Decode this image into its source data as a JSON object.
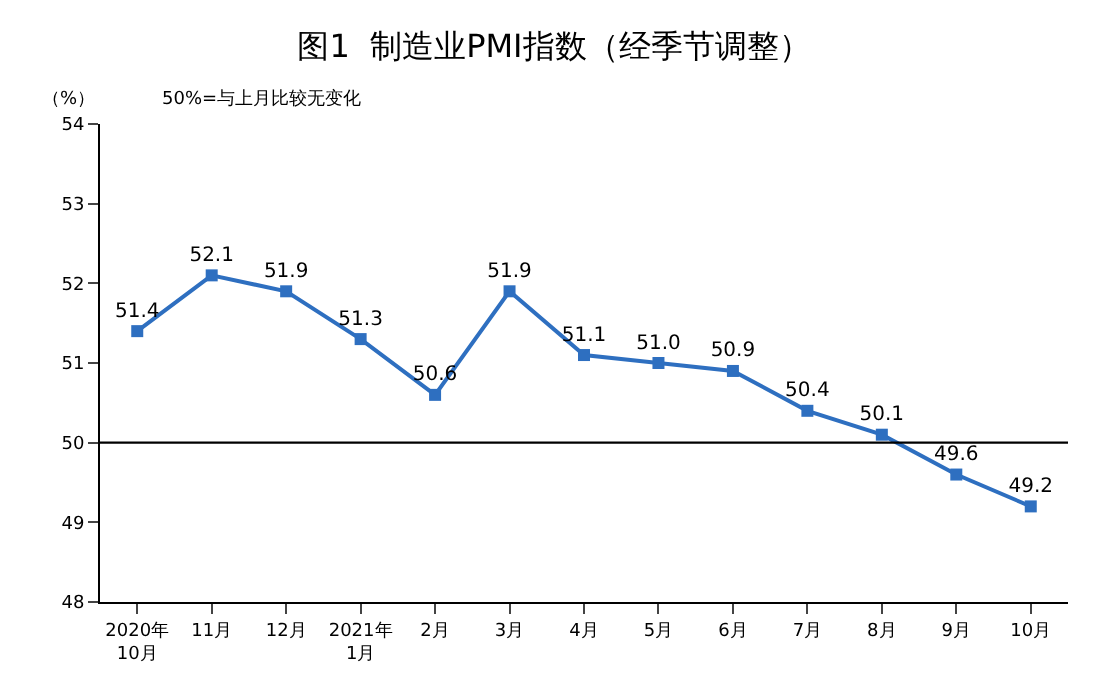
{
  "chart_data": {
    "type": "line",
    "title": "图1  制造业PMI指数（经季节调整）",
    "annotations": [
      "（%）",
      "50%=与上月比较无变化"
    ],
    "categories": [
      "2020年\n10月",
      "11月",
      "12月",
      "2021年\n1月",
      "2月",
      "3月",
      "4月",
      "5月",
      "6月",
      "7月",
      "8月",
      "9月",
      "10月"
    ],
    "series": [
      {
        "color": "#2e6fc0",
        "values": [
          51.4,
          52.1,
          51.9,
          51.3,
          50.6,
          51.9,
          51.1,
          51.0,
          50.9,
          50.4,
          50.1,
          49.6,
          49.2
        ],
        "value_labels": [
          "51.4",
          "52.1",
          "51.9",
          "51.3",
          "50.6",
          "51.9",
          "51.1",
          "51.0",
          "50.9",
          "50.4",
          "50.1",
          "49.6",
          "49.2"
        ]
      }
    ],
    "ylim": [
      48,
      54
    ],
    "yticks": [
      48,
      49,
      50,
      51,
      52,
      53,
      54
    ],
    "ref_lines": [
      {
        "axis": "y",
        "value": 50,
        "color": "#000000"
      }
    ],
    "marker": "square",
    "line_style": "solid",
    "legend": false
  }
}
